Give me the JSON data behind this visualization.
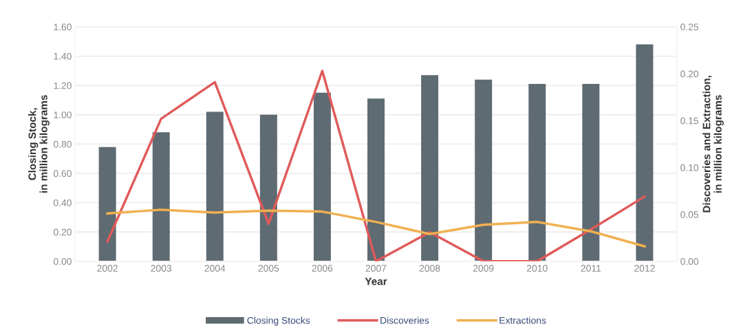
{
  "chart_data": {
    "type": "bar",
    "xlabel": "Year",
    "ylabel": "Closing Stock,\nin million kilograms",
    "y2label": "Discoveries and Extraction,\nin million kilograms",
    "categories": [
      "2002",
      "2003",
      "2004",
      "2005",
      "2006",
      "2007",
      "2008",
      "2009",
      "2010",
      "2011",
      "2012"
    ],
    "series": [
      {
        "name": "Closing Stocks",
        "color": "#5f6b73",
        "values": [
          0.78,
          0.88,
          1.02,
          1.0,
          1.15,
          1.11,
          1.27,
          1.24,
          1.21,
          1.21,
          1.48
        ]
      },
      {
        "name": "Discoveries",
        "type": "line",
        "axis": "y2",
        "color": "#e05a5a",
        "values": [
          0.021,
          0.152,
          0.191,
          0.04,
          0.203,
          0.0,
          0.031,
          0.0,
          0.0,
          0.034,
          0.069
        ]
      },
      {
        "name": "Extractions",
        "type": "line",
        "axis": "y2",
        "color": "#f0b050",
        "values": [
          0.051,
          0.055,
          0.052,
          0.054,
          0.053,
          0.042,
          0.029,
          0.039,
          0.042,
          0.032,
          0.016
        ]
      }
    ],
    "ylim": [
      0,
      1.6
    ],
    "yticks": [
      {
        "value": 0,
        "label": "0.00"
      },
      {
        "value": 0.2,
        "label": "0.20"
      },
      {
        "value": 0.4,
        "label": "0.40"
      },
      {
        "value": 0.6,
        "label": "0.60"
      },
      {
        "value": 0.8,
        "label": "0.80"
      },
      {
        "value": 1.0,
        "label": "1.00"
      },
      {
        "value": 1.2,
        "label": "1.20"
      },
      {
        "value": 1.4,
        "label": "1.40"
      },
      {
        "value": 1.6,
        "label": "1.60"
      }
    ],
    "y2lim": [
      0,
      0.25
    ],
    "y2ticks": [
      {
        "value": 0,
        "label": "0.00"
      },
      {
        "value": 0.05,
        "label": "0.05"
      },
      {
        "value": 0.1,
        "label": "0.10"
      },
      {
        "value": 0.15,
        "label": "0.15"
      },
      {
        "value": 0.2,
        "label": "0.20"
      },
      {
        "value": 0.25,
        "label": "0.25"
      }
    ],
    "grid": "y",
    "legend": "bottom",
    "marker": "none",
    "line_style": "solid"
  }
}
